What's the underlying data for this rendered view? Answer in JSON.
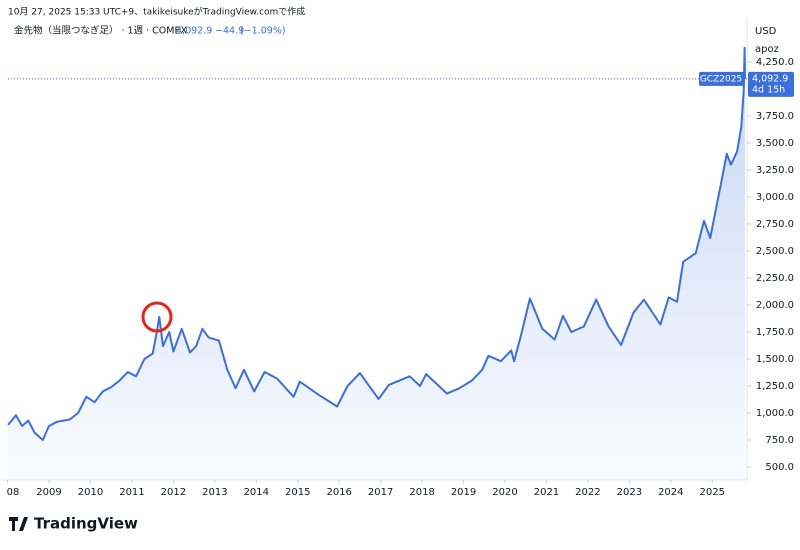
{
  "header": {
    "created": "10月 27, 2025 15:33 UTC+9、takikeisukeがTradingView.comで作成",
    "symbol": "金先物（当限つなぎ足） · 1週 · COMEX",
    "change": "−44.9",
    "change_pct": "(−1.09%)"
  },
  "chart_data": {
    "type": "line",
    "currency": "USD",
    "scale_mode": "apoz",
    "ticker": "GCZ2025",
    "countdown": "4d 15h",
    "last_price": {
      "value": 4092.9,
      "label": "4,092.9"
    },
    "color": "#3b6fd9",
    "grid": false,
    "x": [
      2008.01,
      2008.1,
      2008.2,
      2008.35,
      2008.5,
      2008.65,
      2008.85,
      2009.0,
      2009.2,
      2009.5,
      2009.7,
      2009.9,
      2010.1,
      2010.3,
      2010.5,
      2010.7,
      2010.9,
      2011.1,
      2011.3,
      2011.5,
      2011.6,
      2011.66,
      2011.75,
      2011.9,
      2012.0,
      2012.2,
      2012.4,
      2012.55,
      2012.7,
      2012.85,
      2013.1,
      2013.3,
      2013.5,
      2013.7,
      2013.95,
      2014.2,
      2014.5,
      2014.9,
      2015.05,
      2015.5,
      2015.95,
      2016.2,
      2016.5,
      2016.95,
      2017.2,
      2017.7,
      2017.95,
      2018.1,
      2018.6,
      2018.9,
      2019.2,
      2019.45,
      2019.6,
      2019.9,
      2020.15,
      2020.22,
      2020.4,
      2020.6,
      2020.9,
      2021.2,
      2021.4,
      2021.6,
      2021.9,
      2022.2,
      2022.5,
      2022.8,
      2023.1,
      2023.35,
      2023.75,
      2023.95,
      2024.15,
      2024.3,
      2024.6,
      2024.8,
      2024.95,
      2025.2,
      2025.35,
      2025.45,
      2025.6,
      2025.7,
      2025.76,
      2025.78,
      2025.79
    ],
    "values": [
      890,
      930,
      980,
      880,
      930,
      820,
      750,
      880,
      920,
      940,
      1000,
      1150,
      1100,
      1200,
      1240,
      1300,
      1380,
      1340,
      1500,
      1550,
      1750,
      1890,
      1620,
      1750,
      1570,
      1780,
      1560,
      1620,
      1780,
      1700,
      1670,
      1400,
      1230,
      1400,
      1200,
      1380,
      1320,
      1150,
      1290,
      1170,
      1060,
      1250,
      1370,
      1130,
      1260,
      1340,
      1250,
      1360,
      1180,
      1230,
      1300,
      1400,
      1530,
      1480,
      1580,
      1480,
      1740,
      2060,
      1780,
      1680,
      1900,
      1750,
      1800,
      2050,
      1800,
      1630,
      1930,
      2050,
      1820,
      2070,
      2030,
      2400,
      2480,
      2780,
      2620,
      3100,
      3400,
      3300,
      3420,
      3650,
      4000,
      4380,
      4092.9
    ],
    "xlim": [
      2008.01,
      2025.79
    ],
    "xticks": [
      {
        "value": 2008,
        "label": "08"
      },
      2009,
      2010,
      2011,
      2012,
      2013,
      2014,
      2015,
      2016,
      2017,
      2018,
      2019,
      2020,
      2021,
      2022,
      2023,
      2024,
      2025
    ],
    "ylim": [
      380,
      4657
    ],
    "yticks": [
      {
        "value": 500,
        "label": "500.0"
      },
      {
        "value": 750,
        "label": "750.0"
      },
      {
        "value": 1000,
        "label": "1,000.0"
      },
      {
        "value": 1250,
        "label": "1,250.0"
      },
      {
        "value": 1500,
        "label": "1,500.0"
      },
      {
        "value": 1750,
        "label": "1,750.0"
      },
      {
        "value": 2000,
        "label": "2,000.0"
      },
      {
        "value": 2250,
        "label": "2,250.0"
      },
      {
        "value": 2500,
        "label": "2,500.0"
      },
      {
        "value": 2750,
        "label": "2,750.0"
      },
      {
        "value": 3000,
        "label": "3,000.0"
      },
      {
        "value": 3250,
        "label": "3,250.0"
      },
      {
        "value": 3500,
        "label": "3,500.0"
      },
      {
        "value": 3750,
        "label": "3,750.0"
      },
      {
        "value": 4000,
        "label": "4,000.0"
      },
      {
        "value": 4250,
        "label": "4,250.0"
      }
    ]
  },
  "footer": {
    "brand": "TradingView"
  }
}
